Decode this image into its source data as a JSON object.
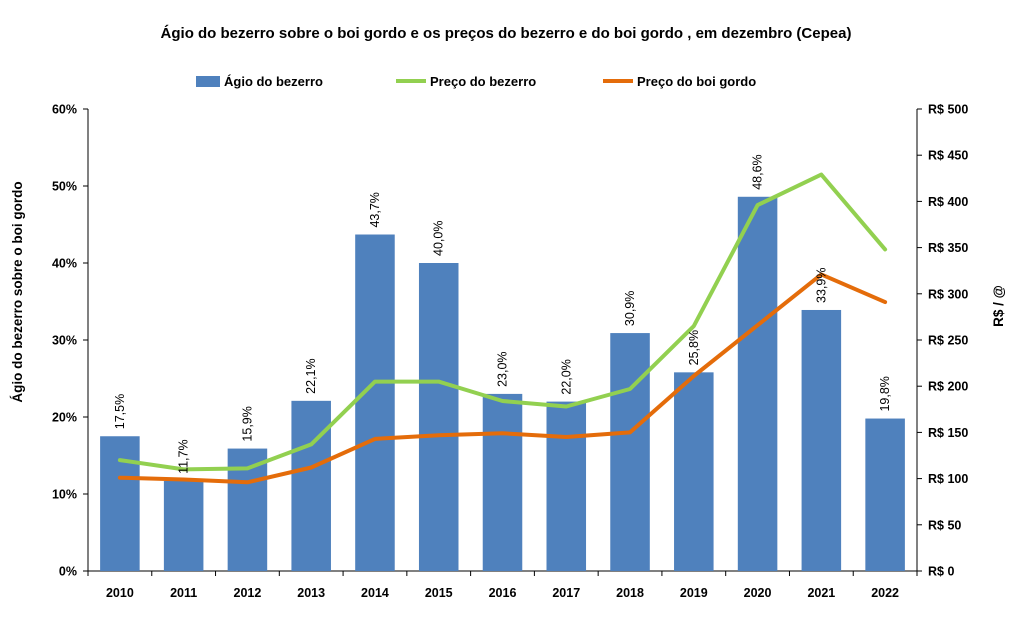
{
  "chart_data": {
    "type": "bar+line",
    "title": "Ágio do bezerro sobre o boi gordo e os preços do bezerro e do boi gordo , em dezembro (Cepea)",
    "categories": [
      "2010",
      "2011",
      "2012",
      "2013",
      "2014",
      "2015",
      "2016",
      "2017",
      "2018",
      "2019",
      "2020",
      "2021",
      "2022"
    ],
    "bar_series": {
      "name": "Ágio do bezerro",
      "color": "#4f81bd",
      "axis": "left",
      "values": [
        17.5,
        11.7,
        15.9,
        22.1,
        43.7,
        40.0,
        23.0,
        22.0,
        30.9,
        25.8,
        48.6,
        33.9,
        19.8
      ],
      "labels": [
        "17,5%",
        "11,7%",
        "15,9%",
        "22,1%",
        "43,7%",
        "40,0%",
        "23,0%",
        "22,0%",
        "30,9%",
        "25,8%",
        "48,6%",
        "33,9%",
        "19,8%"
      ]
    },
    "line_series": [
      {
        "name": "Preço do bezerro",
        "color": "#92d050",
        "axis": "right",
        "values": [
          120,
          110,
          111,
          137,
          205,
          205,
          184,
          178,
          197,
          265,
          396,
          429,
          348
        ]
      },
      {
        "name": "Preço do boi gordo",
        "color": "#e46c0a",
        "axis": "right",
        "values": [
          101,
          99,
          96,
          112,
          143,
          147,
          149,
          145,
          150,
          211,
          266,
          321,
          291
        ]
      }
    ],
    "y_left": {
      "label": "Ágio do bezerro sobre o boi gordo",
      "lim": [
        0,
        60
      ],
      "ticks": [
        0,
        10,
        20,
        30,
        40,
        50,
        60
      ],
      "tick_labels": [
        "0%",
        "10%",
        "20%",
        "30%",
        "40%",
        "50%",
        "60%"
      ]
    },
    "y_right": {
      "label": "R$ / @",
      "lim": [
        0,
        500
      ],
      "ticks": [
        0,
        50,
        100,
        150,
        200,
        250,
        300,
        350,
        400,
        450,
        500
      ],
      "tick_labels": [
        "R$ 0",
        "R$ 50",
        "R$ 100",
        "R$ 150",
        "R$ 200",
        "R$ 250",
        "R$ 300",
        "R$ 350",
        "R$ 400",
        "R$ 450",
        "R$ 500"
      ]
    },
    "grid": false,
    "legend": "top"
  }
}
